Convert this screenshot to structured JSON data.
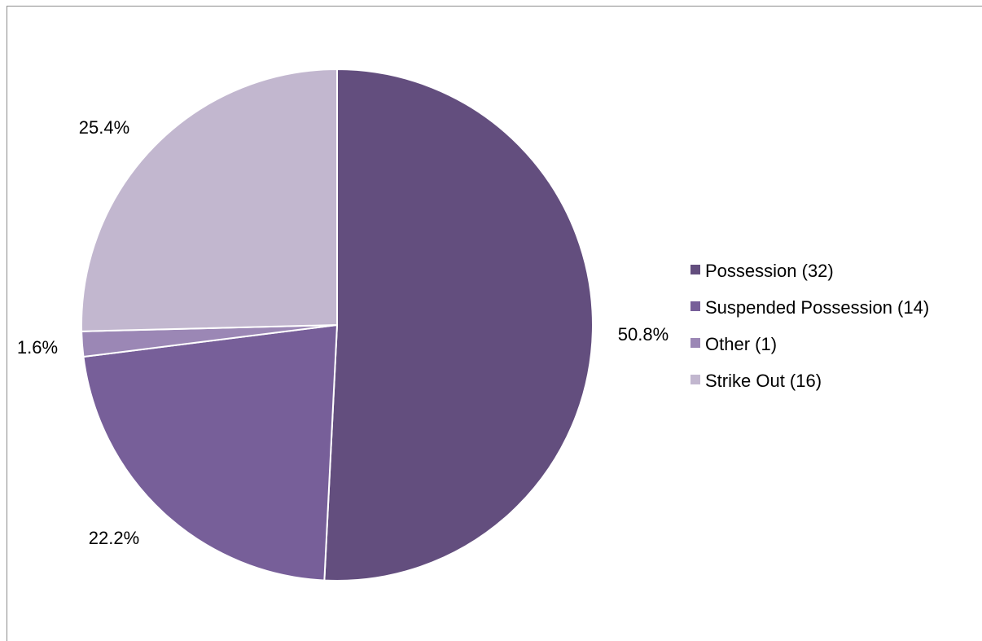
{
  "chart_data": {
    "type": "pie",
    "title": "",
    "categories": [
      "Possession (32)",
      "Suspended Possession (14)",
      "Other (1)",
      "Strike Out (16)"
    ],
    "values": [
      32,
      14,
      1,
      16
    ],
    "percent_labels": [
      "50.8%",
      "22.2%",
      "1.6%",
      "25.4%"
    ],
    "colors": [
      "#634e7e",
      "#775f99",
      "#9b87b5",
      "#c2b7cf"
    ],
    "start_angle_deg": 0,
    "direction": "clockwise",
    "legend_position": "right"
  }
}
